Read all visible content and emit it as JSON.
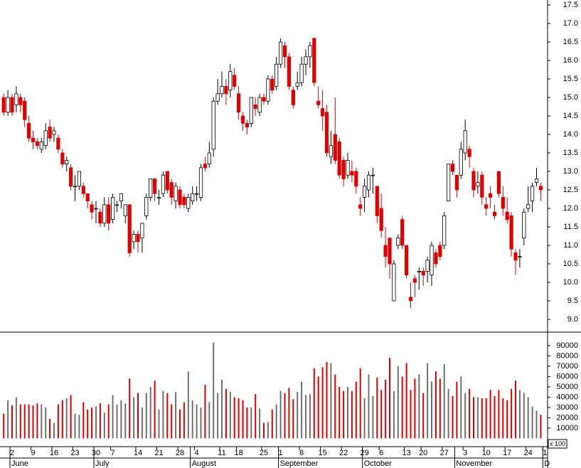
{
  "chart_data": {
    "type": "candlestick",
    "categories": [
      null,
      null,
      "2",
      null,
      null,
      null,
      null,
      "9",
      null,
      null,
      null,
      null,
      "16",
      null,
      null,
      null,
      null,
      "23",
      null,
      null,
      null,
      null,
      "30",
      null,
      null,
      null,
      "7",
      null,
      null,
      null,
      null,
      null,
      "14",
      null,
      null,
      null,
      null,
      "21",
      null,
      null,
      null,
      null,
      "28",
      null,
      null,
      null,
      "4",
      null,
      null,
      null,
      null,
      null,
      "11",
      null,
      null,
      null,
      "18",
      null,
      null,
      null,
      null,
      null,
      "25",
      null,
      null,
      null,
      "1",
      null,
      null,
      null,
      null,
      "8",
      null,
      null,
      null,
      null,
      "15",
      null,
      null,
      null,
      null,
      "22",
      null,
      null,
      null,
      null,
      "29",
      null,
      null,
      null,
      "6",
      null,
      null,
      null,
      null,
      null,
      "13",
      null,
      null,
      null,
      "20",
      null,
      null,
      null,
      null,
      "27",
      null,
      null,
      null,
      null,
      "3",
      null,
      null,
      null,
      null,
      "10",
      null,
      null,
      null,
      null,
      "17",
      null,
      null,
      null,
      null,
      "24",
      null,
      null,
      null,
      "1"
    ],
    "months": [
      null,
      null,
      "June",
      null,
      null,
      null,
      null,
      null,
      null,
      null,
      null,
      null,
      null,
      null,
      null,
      null,
      null,
      null,
      null,
      null,
      null,
      null,
      "July",
      null,
      null,
      null,
      null,
      null,
      null,
      null,
      null,
      null,
      null,
      null,
      null,
      null,
      null,
      null,
      null,
      null,
      null,
      null,
      null,
      null,
      null,
      "August",
      null,
      null,
      null,
      null,
      null,
      null,
      null,
      null,
      null,
      null,
      null,
      null,
      null,
      null,
      null,
      null,
      null,
      null,
      null,
      null,
      "September",
      null,
      null,
      null,
      null,
      null,
      null,
      null,
      null,
      null,
      null,
      null,
      null,
      null,
      null,
      null,
      null,
      null,
      null,
      null,
      "October",
      null,
      null,
      null,
      null,
      null,
      null,
      null,
      null,
      null,
      null,
      null,
      null,
      null,
      null,
      null,
      null,
      null,
      null,
      null,
      null,
      null,
      "November",
      null,
      null,
      null,
      null,
      null,
      null,
      null,
      null,
      null,
      null,
      null,
      null,
      null,
      null,
      null,
      null,
      null,
      null,
      null,
      null,
      "D"
    ],
    "open": [
      15.0,
      14.6,
      15.0,
      14.8,
      15.0,
      14.9,
      14.3,
      13.9,
      13.8,
      13.6,
      13.7,
      14.2,
      14.0,
      13.9,
      13.5,
      13.2,
      13.1,
      12.6,
      12.6,
      12.6,
      12.4,
      12.1,
      12.0,
      11.9,
      11.6,
      12.1,
      11.7,
      12.1,
      12.2,
      11.8,
      12.1,
      11.1,
      11.3,
      11.2,
      11.8,
      12.3,
      12.8,
      12.3,
      12.4,
      13.0,
      12.7,
      12.2,
      12.5,
      12.3,
      12.0,
      12.2,
      12.4,
      12.3,
      13.2,
      13.2,
      13.6,
      14.9,
      15.1,
      15.3,
      15.2,
      15.6,
      15.1,
      14.5,
      14.3,
      14.3,
      14.8,
      14.6,
      15.0,
      14.9,
      15.5,
      15.3,
      15.9,
      16.4,
      16.1,
      15.2,
      15.3,
      15.4,
      15.9,
      16.1,
      16.6,
      14.9,
      14.7,
      14.6,
      13.4,
      14.0,
      13.8,
      13.3,
      12.9,
      13.0,
      13.0,
      12.1,
      12.3,
      12.5,
      12.9,
      12.6,
      12.0,
      11.0,
      11.2,
      9.5,
      11.0,
      11.7,
      11.0,
      9.6,
      10.1,
      10.3,
      10.3,
      10.3,
      10.2,
      10.8,
      11.0,
      11.0,
      12.2,
      13.2,
      12.9,
      12.9,
      13.5,
      13.6,
      13.0,
      12.6,
      12.9,
      12.1,
      12.4,
      11.9,
      13.0,
      12.3,
      11.9,
      11.8,
      10.8,
      10.7,
      11.2,
      12.0,
      12.2,
      12.7,
      12.6,
      null
    ],
    "high": [
      15.1,
      15.2,
      15.1,
      15.3,
      15.1,
      15.0,
      14.5,
      14.1,
      13.9,
      13.9,
      14.3,
      14.4,
      14.2,
      14.0,
      13.6,
      13.4,
      13.2,
      12.9,
      13.0,
      12.7,
      12.4,
      12.2,
      12.2,
      12.0,
      12.3,
      12.3,
      12.4,
      12.2,
      12.4,
      12.1,
      12.1,
      11.4,
      11.4,
      11.6,
      12.4,
      12.8,
      12.8,
      12.5,
      13.0,
      13.0,
      12.8,
      12.7,
      12.6,
      12.4,
      12.4,
      12.6,
      12.6,
      13.2,
      13.4,
      13.8,
      15.0,
      15.5,
      15.7,
      15.5,
      15.9,
      15.8,
      15.3,
      14.6,
      14.4,
      15.0,
      15.0,
      15.1,
      15.1,
      15.6,
      15.6,
      16.1,
      16.6,
      16.5,
      16.2,
      15.3,
      15.7,
      16.1,
      16.3,
      16.5,
      16.6,
      15.3,
      15.2,
      14.8,
      14.1,
      15.0,
      13.9,
      13.4,
      13.5,
      13.3,
      13.1,
      12.3,
      12.8,
      13.0,
      13.1,
      12.6,
      12.4,
      11.5,
      11.2,
      10.6,
      11.3,
      11.8,
      11.0,
      10.0,
      10.2,
      10.4,
      10.4,
      10.7,
      11.1,
      10.9,
      11.1,
      11.9,
      13.2,
      13.3,
      12.9,
      13.8,
      14.4,
      13.7,
      13.1,
      13.0,
      13.0,
      12.3,
      12.6,
      12.1,
      13.0,
      12.6,
      12.3,
      11.9,
      10.9,
      10.9,
      12.0,
      12.6,
      12.7,
      13.1,
      12.7,
      null
    ],
    "low": [
      14.5,
      14.5,
      14.5,
      14.6,
      14.6,
      14.2,
      13.8,
      13.6,
      13.6,
      13.5,
      13.6,
      13.8,
      13.8,
      13.5,
      13.1,
      13.0,
      12.5,
      12.2,
      12.5,
      12.3,
      12.0,
      11.7,
      11.6,
      11.5,
      11.5,
      11.4,
      11.6,
      11.9,
      12.0,
      11.6,
      10.7,
      10.9,
      10.8,
      10.8,
      11.7,
      12.2,
      12.2,
      12.1,
      12.3,
      12.4,
      12.1,
      12.0,
      12.0,
      12.0,
      11.9,
      12.1,
      12.2,
      12.2,
      13.0,
      13.1,
      13.4,
      14.8,
      15.0,
      14.8,
      15.0,
      15.2,
      14.4,
      14.1,
      14.0,
      14.2,
      14.5,
      14.5,
      14.8,
      14.8,
      15.1,
      15.2,
      15.8,
      15.8,
      15.2,
      14.7,
      15.2,
      15.3,
      15.6,
      15.8,
      15.3,
      14.7,
      14.1,
      13.4,
      13.2,
      13.2,
      12.8,
      12.6,
      12.8,
      12.7,
      12.4,
      11.8,
      11.9,
      12.3,
      12.4,
      11.6,
      11.2,
      10.4,
      10.1,
      9.5,
      10.9,
      10.9,
      10.1,
      9.3,
      9.6,
      9.8,
      9.9,
      10.0,
      9.9,
      10.4,
      10.6,
      10.9,
      12.2,
      12.9,
      12.3,
      12.8,
      13.3,
      13.1,
      12.3,
      12.4,
      12.1,
      11.8,
      12.0,
      11.7,
      12.3,
      11.8,
      11.6,
      10.7,
      10.2,
      10.4,
      11.0,
      11.9,
      11.9,
      12.6,
      12.2,
      null
    ],
    "close": [
      14.6,
      15.0,
      14.6,
      15.1,
      14.8,
      14.4,
      13.9,
      13.8,
      13.7,
      13.8,
      14.1,
      13.9,
      14.1,
      13.6,
      13.2,
      13.3,
      12.6,
      12.6,
      13.0,
      12.4,
      12.2,
      11.9,
      12.0,
      11.6,
      12.1,
      11.6,
      12.3,
      12.1,
      12.4,
      12.1,
      10.8,
      11.3,
      11.1,
      11.6,
      12.3,
      12.8,
      12.4,
      12.3,
      12.9,
      12.5,
      12.3,
      12.6,
      12.1,
      12.1,
      12.3,
      12.4,
      12.4,
      13.1,
      13.1,
      13.5,
      14.9,
      15.1,
      15.3,
      15.1,
      15.7,
      15.3,
      14.6,
      14.3,
      14.2,
      15.0,
      14.7,
      15.0,
      14.9,
      15.5,
      15.2,
      15.9,
      16.5,
      16.1,
      15.3,
      14.8,
      15.4,
      15.9,
      16.1,
      16.4,
      15.4,
      14.8,
      14.5,
      13.5,
      13.7,
      13.3,
      12.9,
      12.8,
      13.3,
      12.9,
      12.6,
      12.0,
      12.6,
      12.9,
      12.9,
      11.8,
      11.4,
      10.7,
      10.5,
      10.5,
      11.2,
      11.0,
      10.2,
      9.5,
      10.0,
      10.3,
      10.2,
      10.6,
      11.0,
      10.5,
      10.7,
      11.8,
      13.2,
      13.0,
      12.5,
      13.6,
      14.1,
      13.4,
      12.5,
      12.7,
      12.3,
      12.0,
      12.3,
      11.8,
      12.4,
      12.0,
      11.7,
      10.9,
      10.6,
      10.7,
      11.9,
      12.1,
      12.6,
      12.8,
      12.5,
      null
    ],
    "volume": [
      24000,
      37000,
      32000,
      40000,
      33000,
      33000,
      33000,
      32000,
      34000,
      33000,
      30000,
      19000,
      15000,
      33000,
      37000,
      39000,
      42000,
      24000,
      23000,
      35000,
      28000,
      30000,
      31000,
      34000,
      25000,
      33000,
      42000,
      33000,
      37000,
      34000,
      58000,
      40000,
      44000,
      30000,
      44000,
      50000,
      56000,
      28000,
      46000,
      44000,
      33000,
      45000,
      28000,
      35000,
      65000,
      37000,
      33000,
      30000,
      52000,
      35000,
      93000,
      44000,
      57000,
      48000,
      45000,
      40000,
      39000,
      37000,
      30000,
      30000,
      43000,
      29000,
      15000,
      16000,
      28000,
      33000,
      46000,
      44000,
      49000,
      38000,
      45000,
      55000,
      42000,
      43000,
      68000,
      60000,
      69000,
      74000,
      73000,
      62000,
      50000,
      46000,
      50000,
      46000,
      55000,
      68000,
      39000,
      62000,
      41000,
      59000,
      47000,
      57000,
      78000,
      46000,
      70000,
      60000,
      73000,
      47000,
      58000,
      62000,
      44000,
      73000,
      55000,
      65000,
      58000,
      72000,
      48000,
      41000,
      55000,
      60000,
      44000,
      48000,
      40000,
      40000,
      39000,
      39000,
      47000,
      41000,
      47000,
      39000,
      37000,
      48000,
      56000,
      47000,
      44000,
      40000,
      31000,
      27000,
      23000,
      null
    ],
    "up_color": "#ffffff",
    "down_color": "#e00000",
    "volume_up_color": "#707070",
    "volume_down_color": "#e00000",
    "ylim": [
      8.654,
      17.635
    ],
    "yticks": [
      {
        "value": 9.0,
        "label": "9.0"
      },
      {
        "value": 9.5,
        "label": "9.5"
      },
      {
        "value": 10.0,
        "label": "10.0"
      },
      {
        "value": 10.5,
        "label": "10.5"
      },
      {
        "value": 11.0,
        "label": "11.0"
      },
      {
        "value": 11.5,
        "label": "11.5"
      },
      {
        "value": 12.0,
        "label": "12.0"
      },
      {
        "value": 12.5,
        "label": "12.5"
      },
      {
        "value": 13.0,
        "label": "13.0"
      },
      {
        "value": 13.5,
        "label": "13.5"
      },
      {
        "value": 14.0,
        "label": "14.0"
      },
      {
        "value": 14.5,
        "label": "14.5"
      },
      {
        "value": 15.0,
        "label": "15.0"
      },
      {
        "value": 15.5,
        "label": "15.5"
      },
      {
        "value": 16.0,
        "label": "16.0"
      },
      {
        "value": 16.5,
        "label": "16.5"
      },
      {
        "value": 17.0,
        "label": "17.0"
      },
      {
        "value": 17.5,
        "label": "17.5"
      }
    ],
    "y2lim": [
      -8000,
      103000
    ],
    "y2ticks": [
      10000,
      20000,
      30000,
      40000,
      50000,
      60000,
      70000,
      80000,
      90000
    ],
    "volume_unit_label": "x 100"
  }
}
